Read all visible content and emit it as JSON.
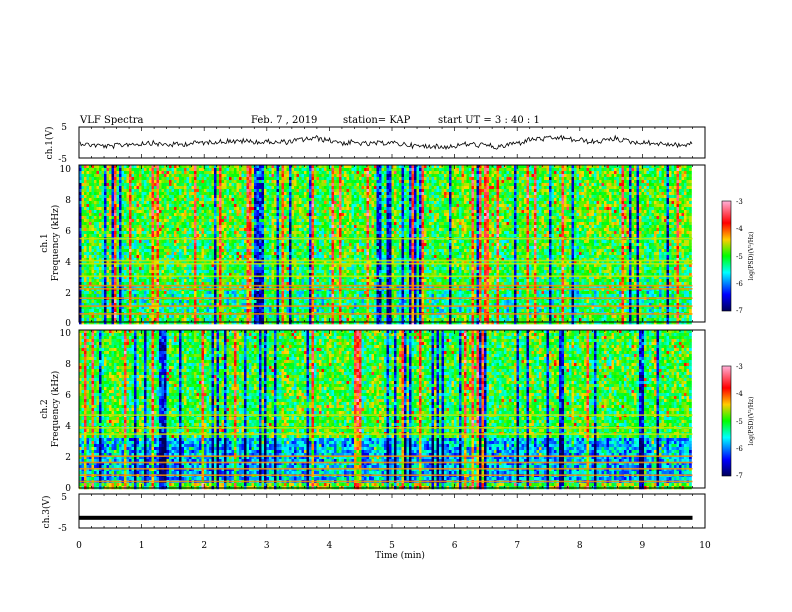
{
  "header": {
    "title": "VLF Spectra",
    "date": "Feb. 7  , 2019",
    "station": "station= KAP",
    "start": "start  UT  =   3  : 40 : 1"
  },
  "chart_data": [
    {
      "type": "line",
      "ylabel": "ch.1(V)",
      "ylim": [
        -5,
        5
      ],
      "yticks": [
        "5",
        "-5"
      ],
      "xlim": [
        0,
        10
      ],
      "description_series": "noisy waveform oscillating around about 0 V"
    },
    {
      "type": "heatmap",
      "ylabel_line1": "ch.1",
      "ylabel_line2": "Frequency  (kHz)",
      "ylim": [
        0,
        10
      ],
      "yticks": [
        "0",
        "2",
        "4",
        "6",
        "8",
        "10"
      ],
      "xlim": [
        0,
        10
      ],
      "colorbar": {
        "label": "log(PSD)(V²/Hz)",
        "range": [
          -7,
          -3
        ],
        "ticks": [
          "-3",
          "-4",
          "-5",
          "-6",
          "-7"
        ],
        "colors": [
          "#ff9ad0",
          "#ff0000",
          "#ffff00",
          "#00ff00",
          "#00ffff",
          "#0000ff",
          "#000066"
        ]
      }
    },
    {
      "type": "heatmap",
      "ylabel_line1": "ch.2",
      "ylabel_line2": "Frequency  (kHz)",
      "ylim": [
        0,
        10
      ],
      "yticks": [
        "0",
        "2",
        "4",
        "6",
        "8",
        "10"
      ],
      "xlim": [
        0,
        10
      ],
      "colorbar": {
        "label": "log(PSD)(V²/Hz)",
        "range": [
          -7,
          -3
        ],
        "ticks": [
          "-3",
          "-4",
          "-5",
          "-6",
          "-7"
        ]
      }
    },
    {
      "type": "line",
      "ylabel": "ch.3(V)",
      "ylim": [
        -5,
        5
      ],
      "yticks": [
        "5",
        "-5"
      ],
      "xlim": [
        0,
        10
      ],
      "values_constant": -2
    }
  ],
  "xaxis": {
    "label": "Time  (min)",
    "ticks": [
      "0",
      "1",
      "2",
      "3",
      "4",
      "5",
      "6",
      "7",
      "8",
      "9",
      "10"
    ]
  }
}
